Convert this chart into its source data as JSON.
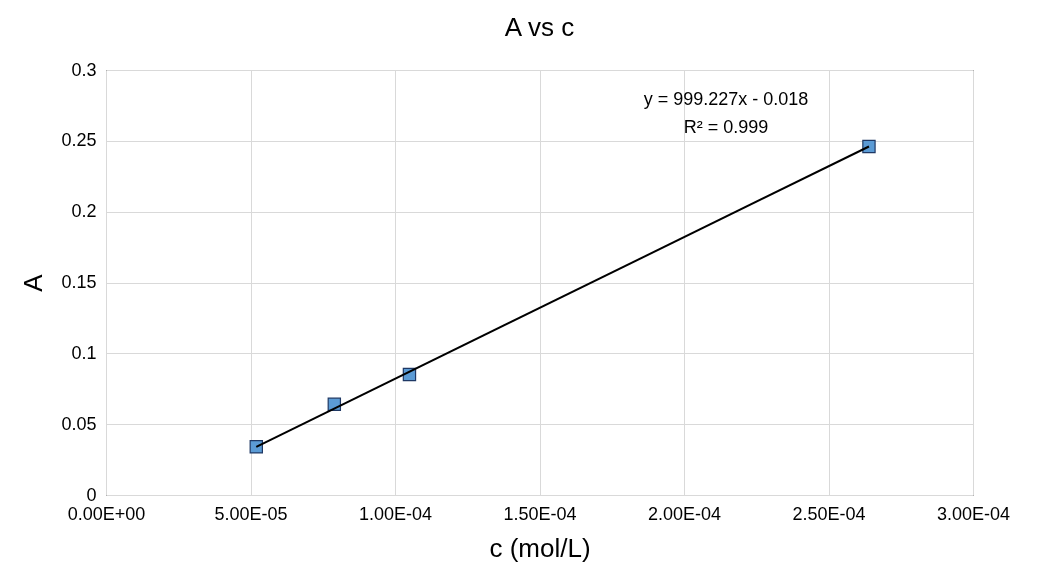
{
  "chart_data": {
    "type": "scatter",
    "title": "A vs c",
    "xlabel": "c (mol/L)",
    "ylabel": "A",
    "series": [
      {
        "type": "scatter",
        "color": "#5b9bd5",
        "x": [
          5.2e-05,
          7.9e-05,
          0.000105,
          0.000264
        ],
        "values": [
          0.034,
          0.064,
          0.085,
          0.246
        ]
      },
      {
        "type": "line",
        "color": "#000000",
        "marker": "none",
        "x": [
          5.2e-05,
          0.000264
        ],
        "values": [
          0.034,
          0.246
        ]
      }
    ],
    "marker": "square",
    "xlim": [
      0,
      0.0003
    ],
    "xticks": [
      {
        "value": 0,
        "label": "0.00E+00"
      },
      {
        "value": 5e-05,
        "label": "5.00E-05"
      },
      {
        "value": 0.0001,
        "label": "1.00E-04"
      },
      {
        "value": 0.00015,
        "label": "1.50E-04"
      },
      {
        "value": 0.0002,
        "label": "2.00E-04"
      },
      {
        "value": 0.00025,
        "label": "2.50E-04"
      },
      {
        "value": 0.0003,
        "label": "3.00E-04"
      }
    ],
    "ylim": [
      0,
      0.3
    ],
    "yticks": [
      0,
      0.05,
      0.1,
      0.15,
      0.2,
      0.25,
      0.3
    ],
    "grid": true,
    "annotations": [
      "y = 999.227x - 0.018",
      "R² = 0.999"
    ]
  }
}
